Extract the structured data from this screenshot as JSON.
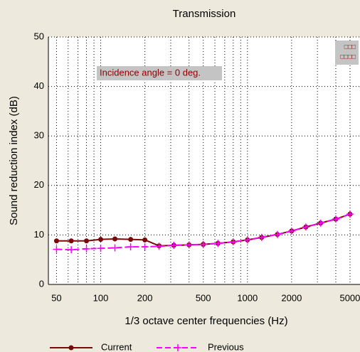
{
  "chart_data": {
    "type": "line",
    "title": "Transmission",
    "x_label": "1/3 octave center frequencies (Hz)",
    "y_label": "Sound reduction index (dB)",
    "annotations": [
      "Incidence angle = 0 deg.",
      "□□□",
      "□□□□"
    ],
    "x": [
      50,
      63,
      80,
      100,
      125,
      160,
      200,
      250,
      315,
      400,
      500,
      630,
      800,
      1000,
      1250,
      1600,
      2000,
      2500,
      3150,
      4000,
      5000
    ],
    "series": [
      {
        "name": "Current",
        "color": "#7a0a0a",
        "values": [
          8.8,
          8.8,
          8.8,
          9.1,
          9.2,
          9.1,
          9.0,
          7.8,
          7.9,
          8.0,
          8.1,
          8.3,
          8.6,
          9.0,
          9.5,
          10.1,
          10.8,
          11.6,
          12.4,
          13.2,
          14.2
        ]
      },
      {
        "name": "Previous",
        "color": "#ff00ff",
        "values": [
          7.1,
          7.0,
          7.2,
          7.3,
          7.4,
          7.6,
          7.6,
          7.7,
          7.9,
          8.0,
          8.1,
          8.3,
          8.6,
          9.0,
          9.5,
          10.1,
          10.8,
          11.6,
          12.4,
          13.2,
          14.2
        ]
      }
    ],
    "xlog": true,
    "xlim": [
      44,
      5850
    ],
    "xticks": [
      50,
      100,
      200,
      500,
      1000,
      2000,
      5000
    ],
    "xminor": [
      60,
      70,
      80,
      90,
      300,
      400,
      600,
      700,
      800,
      900,
      3000,
      4000
    ],
    "ylim": [
      0,
      50
    ],
    "yticks": [
      0,
      10,
      20,
      30,
      40,
      50
    ],
    "grid": true
  }
}
